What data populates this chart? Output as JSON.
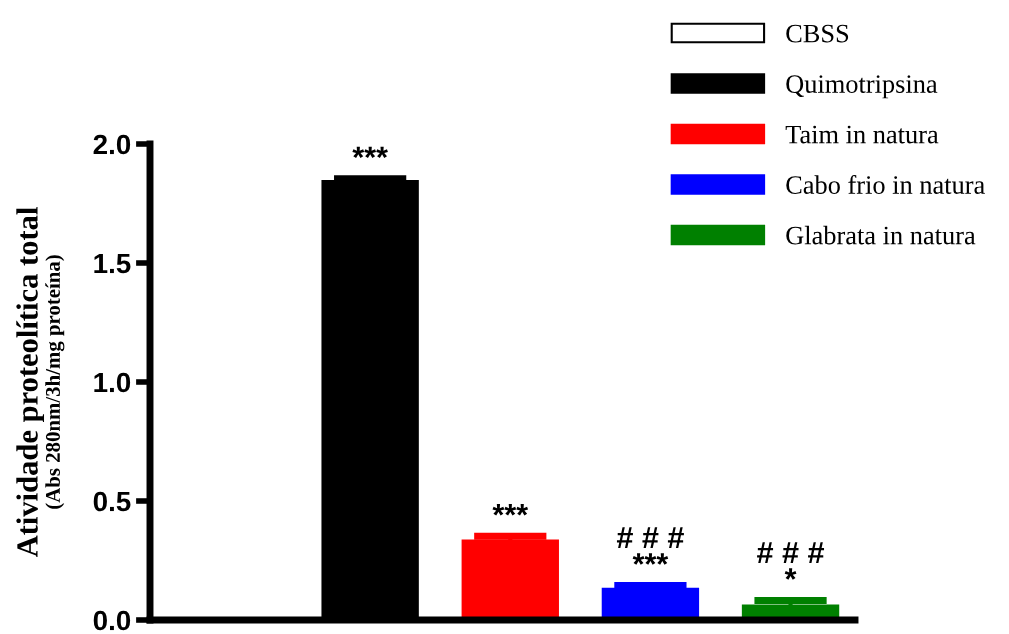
{
  "chart_data": {
    "type": "bar",
    "ylabel": "Atividade proteolítica total\n(Abs 280nm/3h/mg proteína)",
    "categories": [
      null,
      null,
      null,
      null,
      null
    ],
    "series": [
      {
        "name": "CBSS",
        "color": "#ffffff",
        "values": [
          0.003,
          null,
          null,
          null,
          null
        ]
      },
      {
        "name": "Quimotripsina",
        "color": "#000000",
        "values": [
          null,
          1.844,
          null,
          null,
          null
        ],
        "errors": [
          null,
          0.01,
          null,
          null,
          null
        ],
        "value_labels": [
          null,
          "***",
          null,
          null,
          null
        ]
      },
      {
        "name": "Taim in natura",
        "color": "#ff0000",
        "values": [
          null,
          null,
          0.334,
          null,
          null
        ],
        "errors": [
          null,
          null,
          0.018,
          null,
          null
        ],
        "value_labels": [
          null,
          null,
          "***",
          null,
          null
        ]
      },
      {
        "name": "Cabo frio in natura",
        "color": "#0000ff",
        "values": [
          null,
          null,
          null,
          0.131,
          null
        ],
        "errors": [
          null,
          null,
          null,
          0.014,
          null
        ],
        "value_labels": [
          null,
          null,
          null,
          "# # #\n***",
          null
        ]
      },
      {
        "name": "Glabrata in natura",
        "color": "#008000",
        "values": [
          null,
          null,
          null,
          null,
          0.061
        ],
        "errors": [
          null,
          null,
          null,
          null,
          0.021
        ],
        "value_labels": [
          null,
          null,
          null,
          null,
          "# # #\n*"
        ]
      }
    ],
    "ylim": [
      0,
      2.0
    ],
    "yticks": [
      {
        "value": 0,
        "label": "0.0"
      },
      0.5,
      {
        "value": 1,
        "label": "1.0"
      },
      1.5,
      {
        "value": 2,
        "label": "2.0"
      }
    ],
    "legend": "top right",
    "grid": false
  }
}
